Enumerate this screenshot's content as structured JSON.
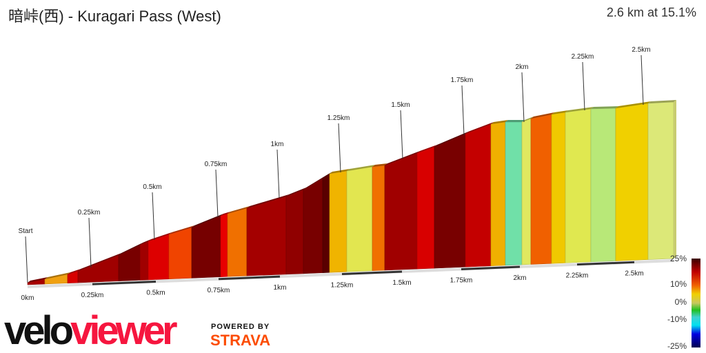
{
  "header": {
    "title": "暗峠(西) - Kuragari Pass (West)",
    "summary": "2.6 km at 15.1%"
  },
  "chart_data": {
    "type": "area",
    "title": "暗峠(西) - Kuragari Pass (West)",
    "top_labels": [
      "Start",
      "0.25km",
      "0.5km",
      "0.75km",
      "1km",
      "1.25km",
      "1.5km",
      "1.75km",
      "2km",
      "2.25km",
      "2.5km"
    ],
    "bottom_labels": [
      "0km",
      "0.25km",
      "0.5km",
      "0.75km",
      "1km",
      "1.25km",
      "1.5km",
      "1.75km",
      "2km",
      "2.25km",
      "2.5km"
    ],
    "segment_colors": [
      "#a80000",
      "#f0a010",
      "#d80000",
      "#a00000",
      "#780000",
      "#a00000",
      "#dd0000",
      "#f04400",
      "#760000",
      "#e80000",
      "#f07000",
      "#a40000",
      "#900000",
      "#780000",
      "#5a0000",
      "#f0b400",
      "#e2e650",
      "#f07000",
      "#a00000",
      "#d80000",
      "#780000",
      "#c40000",
      "#f0b000",
      "#70e0a8",
      "#e0e860",
      "#f06000",
      "#f0c800",
      "#e0e850",
      "#b8e878",
      "#f0d000",
      "#dce878"
    ],
    "colorbar": {
      "ticks": [
        "25%",
        "10%",
        "0%",
        "-10%",
        "-25%"
      ]
    }
  },
  "branding": {
    "logo_a": "velo",
    "logo_b": "viewer",
    "powered": "POWERED BY",
    "strava": "STRAVA"
  }
}
